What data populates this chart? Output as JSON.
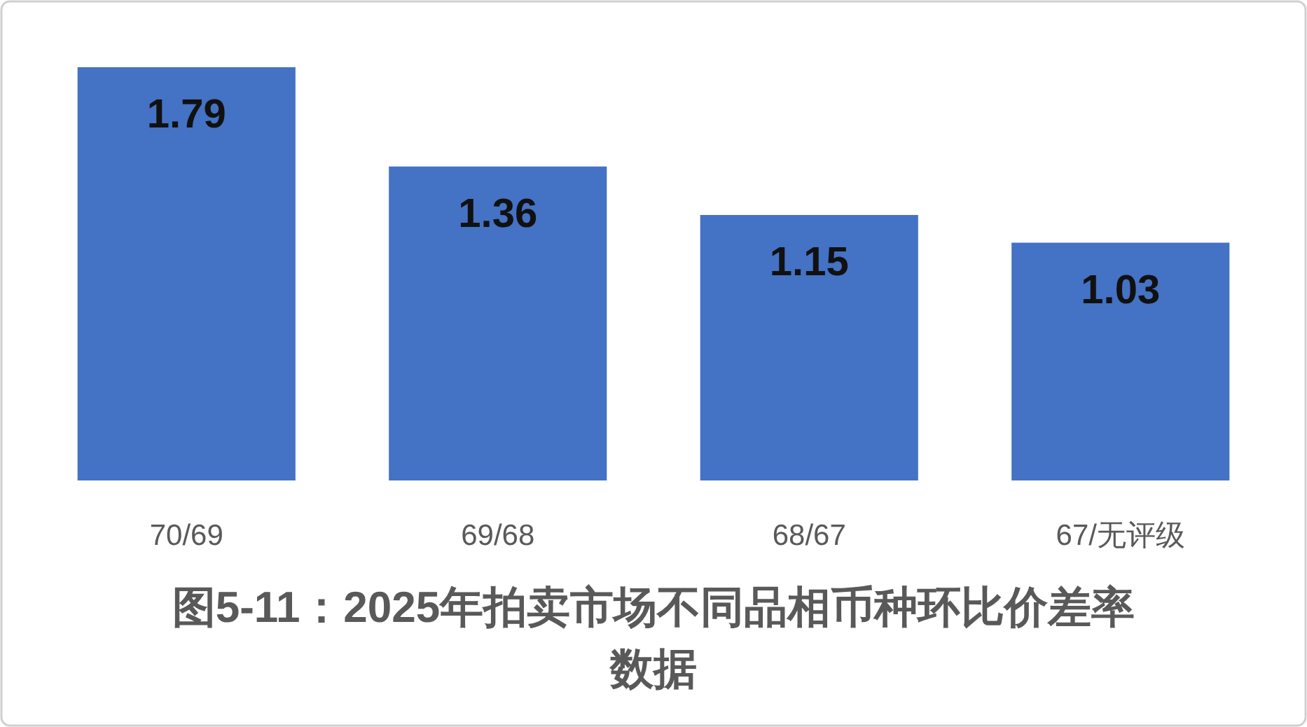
{
  "chart_data": {
    "type": "bar",
    "title": "图5-11：2025年拍卖市场不同品相币种环比价差率数据",
    "categories": [
      "70/69",
      "69/68",
      "68/67",
      "67/无评级"
    ],
    "values": [
      1.79,
      1.36,
      1.15,
      1.03
    ],
    "color": "#4472c4",
    "data_labels": true
  }
}
